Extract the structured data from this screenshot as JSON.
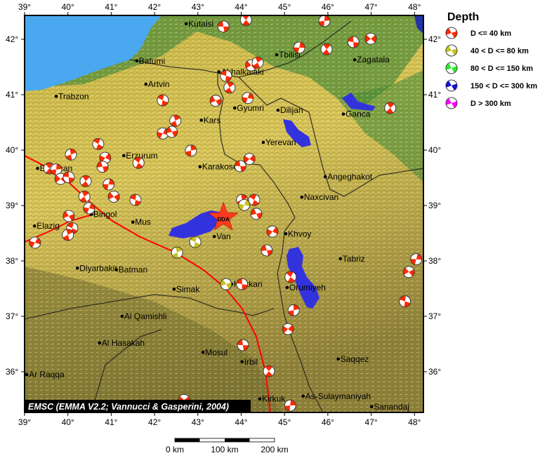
{
  "map": {
    "extent": {
      "lon": [
        39,
        48.2
      ],
      "lat": [
        35.3,
        42.43
      ]
    },
    "lon_ticks": [
      "39°",
      "40°",
      "41°",
      "42°",
      "43°",
      "44°",
      "45°",
      "46°",
      "47°",
      "48°"
    ],
    "lat_ticks": [
      "42°",
      "41°",
      "40°",
      "39°",
      "38°",
      "37°",
      "36°"
    ],
    "attribution": "EMSC (EMMA V2.2; Vannucci & Gasperini, 2004)",
    "scale_bar": {
      "labels": [
        "0 km",
        "100 km",
        "200 km"
      ]
    },
    "epicenter": {
      "label": "DDA",
      "lon": 43.59,
      "lat": 38.78,
      "color": "#ff3b1f"
    },
    "colors": {
      "shallow": "#ff2a00",
      "intermediate": "#c8c020",
      "lake": "#3333dd",
      "sea": "#4aa8f0",
      "fault": "#ff0000"
    },
    "cities": [
      {
        "name": "Kutaisi",
        "lon": 42.73,
        "lat": 42.28
      },
      {
        "name": "Batumi",
        "lon": 41.59,
        "lat": 41.61
      },
      {
        "name": "Artvin",
        "lon": 41.8,
        "lat": 41.19
      },
      {
        "name": "Trabzon",
        "lon": 39.73,
        "lat": 40.97
      },
      {
        "name": "Tbilisi",
        "lon": 44.82,
        "lat": 41.72
      },
      {
        "name": "Zagatala",
        "lon": 46.62,
        "lat": 41.63
      },
      {
        "name": "Akhalkalaki",
        "lon": 43.49,
        "lat": 41.41
      },
      {
        "name": "Gyumri",
        "lon": 43.85,
        "lat": 40.76
      },
      {
        "name": "Kars",
        "lon": 43.08,
        "lat": 40.54
      },
      {
        "name": "Dilijan",
        "lon": 44.85,
        "lat": 40.72
      },
      {
        "name": "Ganca",
        "lon": 46.36,
        "lat": 40.65
      },
      {
        "name": "Yerevan",
        "lon": 44.51,
        "lat": 40.14
      },
      {
        "name": "Erzurum",
        "lon": 41.29,
        "lat": 39.9
      },
      {
        "name": "Erzincan",
        "lon": 39.3,
        "lat": 39.67
      },
      {
        "name": "Karakose",
        "lon": 43.05,
        "lat": 39.7
      },
      {
        "name": "Angeghakot",
        "lon": 45.94,
        "lat": 39.52
      },
      {
        "name": "Naxcivan",
        "lon": 45.4,
        "lat": 39.15
      },
      {
        "name": "Bingol",
        "lon": 40.54,
        "lat": 38.84
      },
      {
        "name": "Mus",
        "lon": 41.5,
        "lat": 38.7
      },
      {
        "name": "Elazig",
        "lon": 39.23,
        "lat": 38.63
      },
      {
        "name": "Van",
        "lon": 43.38,
        "lat": 38.44
      },
      {
        "name": "Khvoy",
        "lon": 45.03,
        "lat": 38.49
      },
      {
        "name": "Tabriz",
        "lon": 46.29,
        "lat": 38.04
      },
      {
        "name": "Diyarbakir",
        "lon": 40.22,
        "lat": 37.87
      },
      {
        "name": "Batman",
        "lon": 41.12,
        "lat": 37.84
      },
      {
        "name": "Hakkari",
        "lon": 43.78,
        "lat": 37.58
      },
      {
        "name": "Simak",
        "lon": 42.45,
        "lat": 37.49
      },
      {
        "name": "Orumiyeh",
        "lon": 45.06,
        "lat": 37.52
      },
      {
        "name": "Al Qamishli",
        "lon": 41.25,
        "lat": 37.0
      },
      {
        "name": "Al Hasakah",
        "lon": 40.73,
        "lat": 36.52
      },
      {
        "name": "Mosul",
        "lon": 43.12,
        "lat": 36.35
      },
      {
        "name": "Irbil",
        "lon": 44.02,
        "lat": 36.18
      },
      {
        "name": "Saqqez",
        "lon": 46.24,
        "lat": 36.23
      },
      {
        "name": "Ar Raqqa",
        "lon": 39.05,
        "lat": 35.95
      },
      {
        "name": "Kirkuk",
        "lon": 44.43,
        "lat": 35.51
      },
      {
        "name": "As-Sulaymaniyah",
        "lon": 45.43,
        "lat": 35.56
      },
      {
        "name": "Sanandaj",
        "lon": 47.01,
        "lat": 35.37
      }
    ],
    "mechanisms": [
      [
        43.59,
        42.23,
        0
      ],
      [
        44.11,
        42.35,
        0
      ],
      [
        45.92,
        42.33,
        0
      ],
      [
        46.99,
        42.01,
        0
      ],
      [
        46.59,
        41.95,
        0
      ],
      [
        45.97,
        41.82,
        0
      ],
      [
        45.34,
        41.85,
        0
      ],
      [
        44.23,
        41.53,
        0
      ],
      [
        43.65,
        41.34,
        0
      ],
      [
        43.73,
        41.13,
        0
      ],
      [
        44.15,
        40.94,
        0
      ],
      [
        43.41,
        40.89,
        0
      ],
      [
        42.19,
        40.9,
        0
      ],
      [
        42.48,
        40.53,
        0
      ],
      [
        42.19,
        40.3,
        0
      ],
      [
        42.4,
        40.33,
        0
      ],
      [
        40.7,
        40.11,
        0
      ],
      [
        40.07,
        39.92,
        0
      ],
      [
        40.86,
        39.86,
        0
      ],
      [
        40.8,
        39.7,
        0
      ],
      [
        41.63,
        39.77,
        0
      ],
      [
        42.84,
        39.99,
        0
      ],
      [
        44.19,
        39.84,
        0
      ],
      [
        43.98,
        39.71,
        0
      ],
      [
        39.57,
        39.67,
        0
      ],
      [
        39.73,
        39.65,
        0
      ],
      [
        39.83,
        39.48,
        0
      ],
      [
        40.02,
        39.51,
        0
      ],
      [
        40.41,
        39.44,
        0
      ],
      [
        40.94,
        39.38,
        0
      ],
      [
        41.06,
        39.16,
        0
      ],
      [
        41.56,
        39.1,
        0
      ],
      [
        40.38,
        39.16,
        0
      ],
      [
        40.49,
        38.95,
        0
      ],
      [
        40.02,
        38.81,
        0
      ],
      [
        40.1,
        38.59,
        0
      ],
      [
        40.0,
        38.47,
        0
      ],
      [
        39.24,
        38.33,
        0
      ],
      [
        44.35,
        38.85,
        0
      ],
      [
        44.3,
        39.1,
        0
      ],
      [
        44.02,
        39.1,
        0
      ],
      [
        44.72,
        38.53,
        0
      ],
      [
        44.59,
        38.19,
        0
      ],
      [
        45.14,
        37.71,
        0
      ],
      [
        45.21,
        37.11,
        0
      ],
      [
        45.08,
        36.77,
        0
      ],
      [
        44.04,
        36.48,
        0
      ],
      [
        44.64,
        36.01,
        0
      ],
      [
        45.13,
        35.39,
        0
      ],
      [
        42.68,
        35.49,
        0
      ],
      [
        44.02,
        37.58,
        0
      ],
      [
        47.44,
        40.76,
        0
      ],
      [
        48.04,
        38.03,
        0
      ],
      [
        47.87,
        37.8,
        0
      ],
      [
        47.78,
        37.27,
        0
      ],
      [
        44.38,
        41.58,
        0
      ],
      [
        44.07,
        39.01,
        1
      ],
      [
        43.65,
        37.58,
        1
      ],
      [
        42.94,
        38.34,
        1
      ],
      [
        42.52,
        38.15,
        1
      ]
    ]
  },
  "legend": {
    "title": "Depth",
    "items": [
      {
        "label": "D <= 40 km",
        "color": "#ff2a00"
      },
      {
        "label": "40 < D <= 80 km",
        "color": "#c8c020"
      },
      {
        "label": "80 < D <= 150 km",
        "color": "#22ee22"
      },
      {
        "label": "150 < D <= 300 km",
        "color": "#1010dd"
      },
      {
        "label": "D > 300 km",
        "color": "#ff00ff"
      }
    ]
  }
}
